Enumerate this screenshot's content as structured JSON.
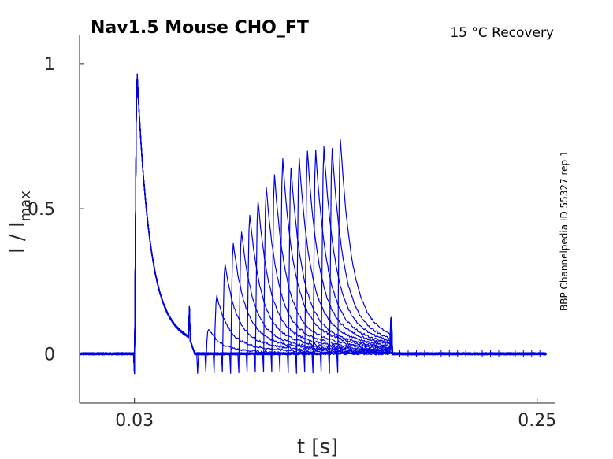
{
  "chart_data": {
    "type": "line",
    "title": "Nav1.5  Mouse  CHO_FT",
    "subtitle": "15 °C  Recovery",
    "side_label": "BBP Channelpedia ID 55327 rep 1",
    "xlabel": "t [s]",
    "ylabel_main": "I / I",
    "ylabel_sub": "max",
    "xlim": [
      0.0,
      0.26
    ],
    "ylim": [
      -0.17,
      1.1
    ],
    "x_ticks": [
      {
        "value": 0.03,
        "label": "0.03"
      },
      {
        "value": 0.25,
        "label": "0.25"
      }
    ],
    "y_ticks": [
      {
        "value": 0,
        "label": "0"
      },
      {
        "value": 0.5,
        "label": "0.5"
      },
      {
        "value": 1,
        "label": "1"
      }
    ],
    "color": "#0000e6",
    "conditioning_pulse": {
      "start": 0.03,
      "peak": 1.0,
      "end": 0.06
    },
    "test_pulse_times": [
      0.0645,
      0.069,
      0.0735,
      0.078,
      0.0825,
      0.087,
      0.0915,
      0.096,
      0.1005,
      0.105,
      0.1095,
      0.114,
      0.1185,
      0.123,
      0.1275,
      0.132,
      0.1365,
      0.141
    ],
    "test_pulse_peaks": [
      0.0,
      0.09,
      0.21,
      0.32,
      0.4,
      0.44,
      0.5,
      0.55,
      0.6,
      0.64,
      0.7,
      0.67,
      0.7,
      0.73,
      0.73,
      0.74,
      0.74,
      0.77
    ],
    "pulse_end": 0.17
  }
}
